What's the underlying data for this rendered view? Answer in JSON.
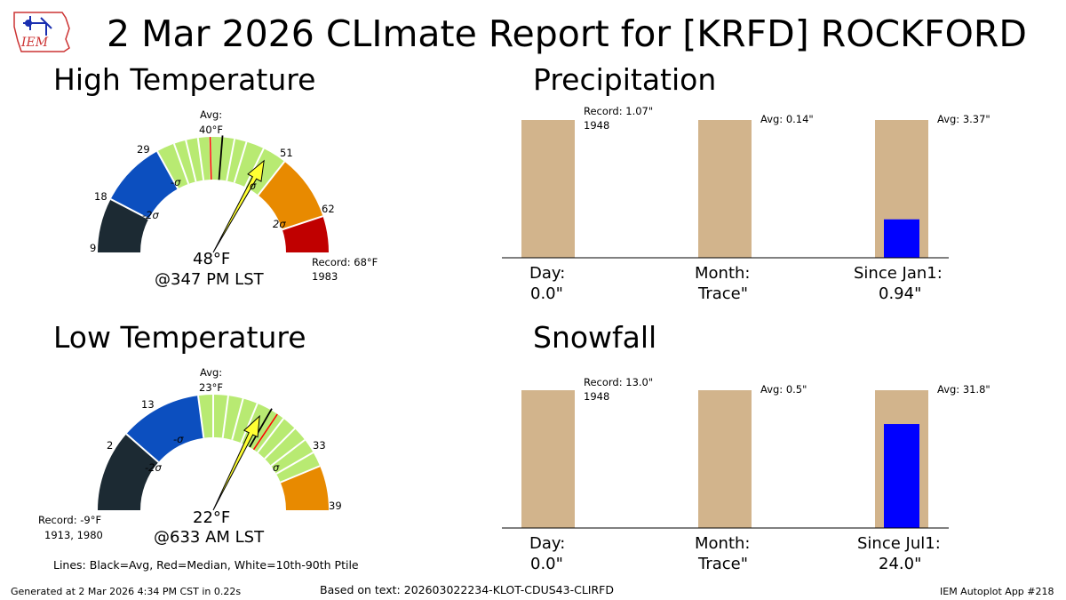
{
  "title": "2 Mar 2026 CLImate Report for [KRFD] ROCKFORD",
  "logo": {
    "text": "IEM"
  },
  "high_temp": {
    "section_title": "High Temperature",
    "avg_label": "Avg:",
    "avg_value": "40°F",
    "reading": "48°F",
    "time": "@347 PM LST",
    "record_label": "Record: 68°F",
    "record_year": "1983",
    "minus_sigma": "-σ",
    "minus_2sigma": "-2σ",
    "sigma": "σ",
    "two_sigma": "2σ",
    "tick_labels": [
      "9",
      "18",
      "29",
      "51",
      "62"
    ]
  },
  "low_temp": {
    "section_title": "Low Temperature",
    "avg_label": "Avg:",
    "avg_value": "23°F",
    "reading": "22°F",
    "time": "@633 AM LST",
    "record_label": "Record: -9°F",
    "record_year": "1913, 1980",
    "minus_sigma": "-σ",
    "minus_2sigma": "-2σ",
    "sigma": "σ",
    "tick_labels": [
      "2",
      "13",
      "33",
      "39"
    ]
  },
  "legend_note": "Lines: Black=Avg, Red=Median, White=10th-90th Ptile",
  "precip": {
    "section_title": "Precipitation",
    "day_label": "Day:",
    "day_value": "0.0\"",
    "month_label": "Month:",
    "month_value": "Trace\"",
    "since_label": "Since Jan1:",
    "since_value": "0.94\"",
    "day_annot": "Record: 1.07\"",
    "day_annot_year": "1948",
    "month_annot": "Avg: 0.14\"",
    "since_annot": "Avg: 3.37\""
  },
  "snow": {
    "section_title": "Snowfall",
    "day_label": "Day:",
    "day_value": "0.0\"",
    "month_label": "Month:",
    "month_value": "Trace\"",
    "since_label": "Since Jul1:",
    "since_value": "24.0\"",
    "day_annot": "Record: 13.0\"",
    "day_annot_year": "1948",
    "month_annot": "Avg: 0.5\"",
    "since_annot": "Avg: 31.8\""
  },
  "footer": {
    "generated": "Generated at 2 Mar 2026 4:34 PM CST in 0.22s",
    "based_on": "Based on text: 202603022234-KLOT-CDUS43-CLIRFD",
    "app": "IEM Autoplot App #218"
  },
  "colors": {
    "dark": "#1c2a33",
    "blue": "#0c4fbf",
    "green": "#b8ea72",
    "orange": "#e88a00",
    "red": "#c00000",
    "tan": "#d2b48c",
    "bar_blue": "#0000ff",
    "needle": "#ffff33"
  },
  "chart_data": [
    {
      "type": "gauge",
      "title": "High Temperature",
      "unit": "°F",
      "range": [
        9,
        68
      ],
      "bands": [
        {
          "from": 9,
          "to": 18,
          "color": "dark"
        },
        {
          "from": 18,
          "to": 29,
          "color": "blue"
        },
        {
          "from": 29,
          "to": 51,
          "color": "green"
        },
        {
          "from": 51,
          "to": 62,
          "color": "orange"
        },
        {
          "from": 62,
          "to": 68,
          "color": "red"
        }
      ],
      "ptile_lines": [
        32,
        34,
        36,
        38,
        42,
        44,
        47
      ],
      "avg": 40,
      "median": 38,
      "value": 48,
      "record": 68
    },
    {
      "type": "gauge",
      "title": "Low Temperature",
      "unit": "°F",
      "range": [
        -9,
        39
      ],
      "bands": [
        {
          "from": -9,
          "to": 2,
          "color": "dark"
        },
        {
          "from": 2,
          "to": 13,
          "color": "blue"
        },
        {
          "from": 13,
          "to": 33,
          "color": "green"
        },
        {
          "from": 33,
          "to": 39,
          "color": "orange"
        }
      ],
      "ptile_lines": [
        15,
        17,
        19,
        21,
        25,
        27,
        29,
        31
      ],
      "avg": 23,
      "median": 24,
      "value": 22,
      "record": -9
    },
    {
      "type": "bar",
      "title": "Precipitation",
      "categories": [
        "Day",
        "Month",
        "Since Jan1"
      ],
      "reference": [
        1.07,
        0.14,
        3.37
      ],
      "observed": [
        0.0,
        0.0,
        0.94
      ]
    },
    {
      "type": "bar",
      "title": "Snowfall",
      "categories": [
        "Day",
        "Month",
        "Since Jul1"
      ],
      "reference": [
        13.0,
        0.5,
        31.8
      ],
      "observed": [
        0.0,
        0.0,
        24.0
      ]
    }
  ]
}
